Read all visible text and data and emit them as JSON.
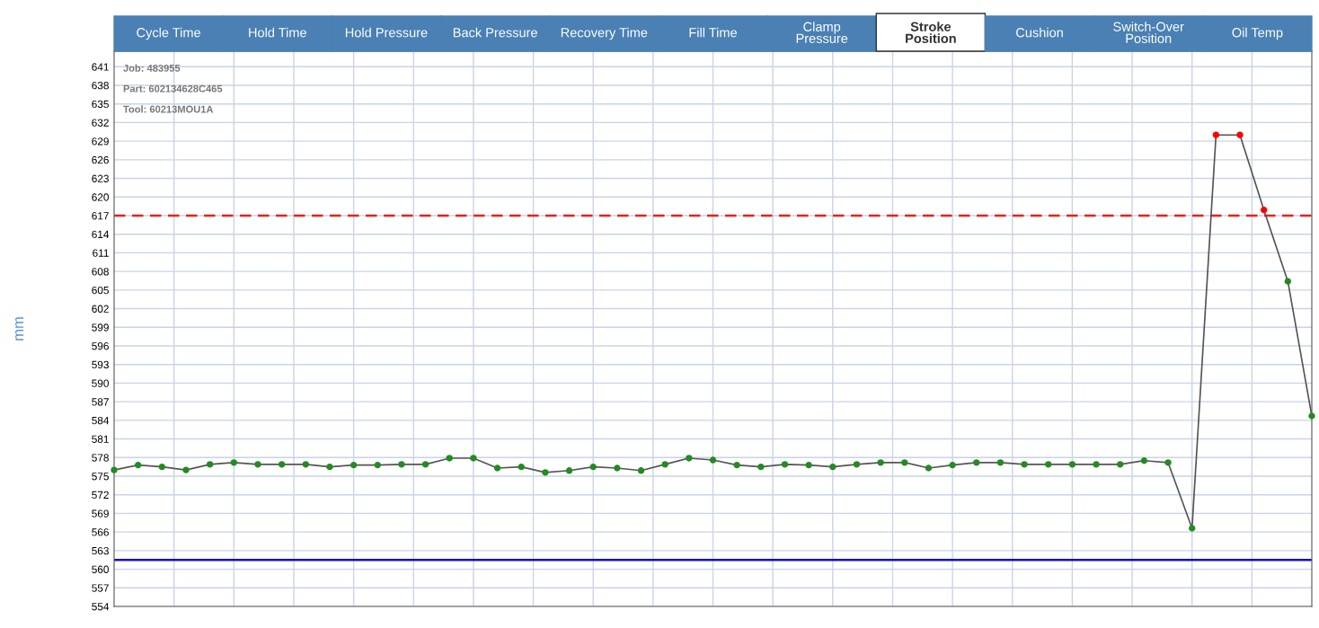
{
  "chart_data": {
    "type": "line",
    "title": "Stroke\nPosition",
    "annotations": [
      "Cycle Time",
      "Hold Time",
      "Hold Pressure",
      "Back Pressure",
      "Recovery Time",
      "Fill Time",
      "Clamp\nPressure",
      "Cushion",
      "Switch-Over\nPosition",
      "Oil Temp",
      "Job: 483955",
      "Part: 602134628C465",
      "Tool: 60213MOU1A"
    ],
    "ylabel": "mm",
    "categories": [
      null,
      null,
      null,
      null,
      null,
      null,
      null,
      null,
      null,
      null,
      null,
      null,
      null,
      null,
      null,
      null,
      null,
      null,
      null,
      null,
      null,
      null,
      null,
      null,
      null,
      null,
      null,
      null,
      null,
      null,
      null,
      null,
      null,
      null,
      null,
      null,
      null,
      null,
      null,
      null,
      null,
      null,
      null,
      null,
      null,
      null,
      null,
      null,
      null,
      null,
      null
    ],
    "series": [
      {
        "color": "#555555",
        "values": [
          576.0,
          576.8,
          576.5,
          576.0,
          576.9,
          577.2,
          576.9,
          576.9,
          576.9,
          576.5,
          576.8,
          576.8,
          576.9,
          576.9,
          577.9,
          577.9,
          576.3,
          576.5,
          575.6,
          575.9,
          576.5,
          576.3,
          575.9,
          576.9,
          577.9,
          577.6,
          576.8,
          576.5,
          576.9,
          576.8,
          576.5,
          576.9,
          577.2,
          577.2,
          576.3,
          576.8,
          577.2,
          577.2,
          576.9,
          576.9,
          576.9,
          576.9,
          576.9,
          577.5,
          577.2,
          566.6,
          630.0,
          630.0,
          617.9,
          606.4,
          584.7
        ],
        "colors": [
          "#228b22",
          "#228b22",
          "#228b22",
          "#228b22",
          "#228b22",
          "#228b22",
          "#228b22",
          "#228b22",
          "#228b22",
          "#228b22",
          "#228b22",
          "#228b22",
          "#228b22",
          "#228b22",
          "#228b22",
          "#228b22",
          "#228b22",
          "#228b22",
          "#228b22",
          "#228b22",
          "#228b22",
          "#228b22",
          "#228b22",
          "#228b22",
          "#228b22",
          "#228b22",
          "#228b22",
          "#228b22",
          "#228b22",
          "#228b22",
          "#228b22",
          "#228b22",
          "#228b22",
          "#228b22",
          "#228b22",
          "#228b22",
          "#228b22",
          "#228b22",
          "#228b22",
          "#228b22",
          "#228b22",
          "#228b22",
          "#228b22",
          "#228b22",
          "#228b22",
          "#228b22",
          "#ff0000",
          "#ff0000",
          "#ff0000",
          "#228b22",
          "#228b22"
        ]
      }
    ],
    "ylim": [
      554,
      643.5
    ],
    "yticks": [
      554,
      557,
      560,
      563,
      566,
      569,
      572,
      575,
      578,
      581,
      584,
      587,
      590,
      593,
      596,
      599,
      602,
      605,
      608,
      611,
      614,
      617,
      620,
      623,
      626,
      629,
      632,
      635,
      638,
      641
    ],
    "ref_lines": [
      {
        "axis": "y",
        "value": 617,
        "color": "#e8201a",
        "line_style": "dashed"
      },
      {
        "axis": "y",
        "value": 561.5,
        "color": "#1010c8",
        "line_style": "solid"
      }
    ],
    "grid": true,
    "marker": "circle",
    "line_style": "solid"
  }
}
